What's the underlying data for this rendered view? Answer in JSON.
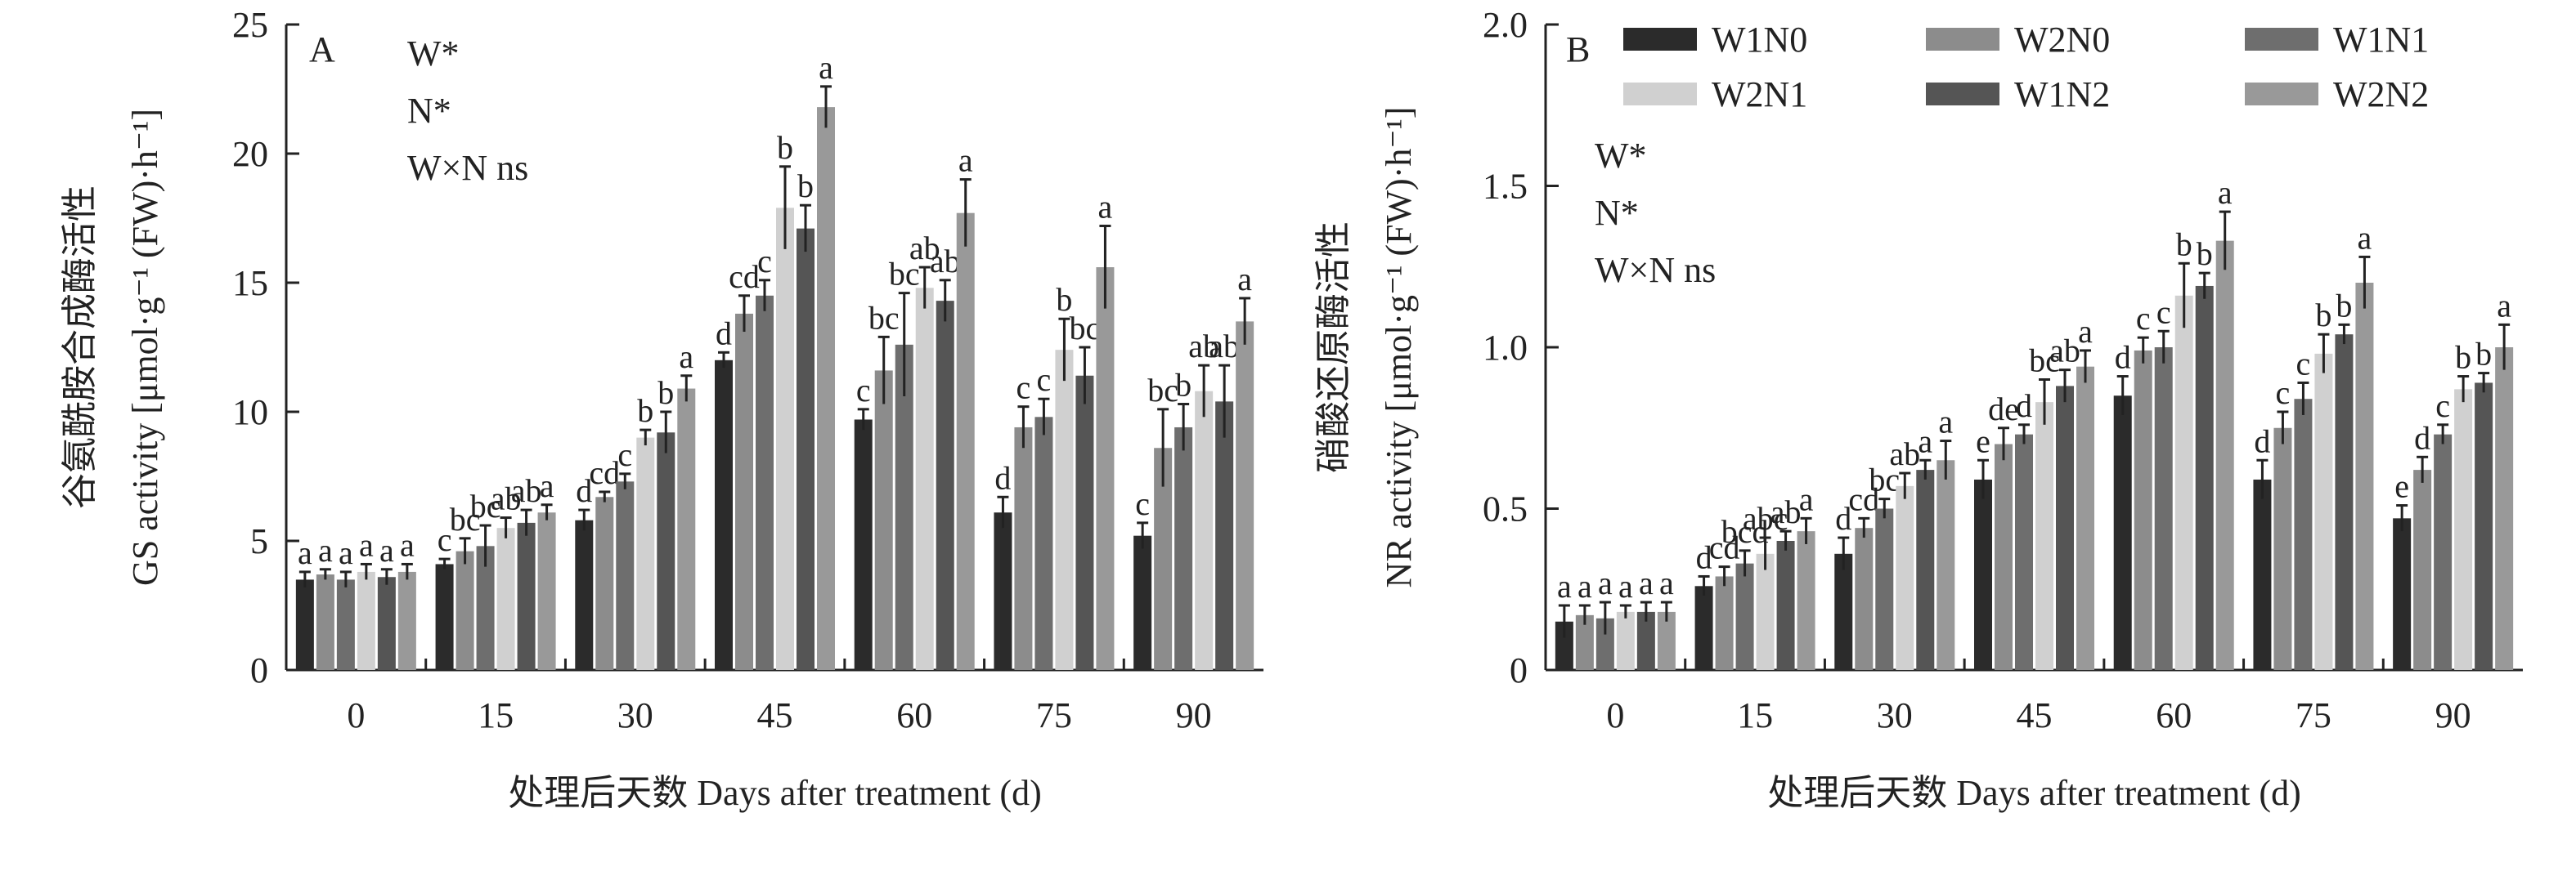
{
  "colors": {
    "axis": "#222222",
    "error_bar": "#222222",
    "series": [
      "#2b2b2b",
      "#8c8c8c",
      "#6e6e6e",
      "#d0d0d0",
      "#555555",
      "#999999"
    ]
  },
  "chart_data": [
    {
      "type": "bar",
      "panel_label": "A",
      "ylabel_cn": "谷氨酰胺合成酶活性",
      "ylabel_en": "GS activity [μmol·g⁻¹ (FW)·h⁻¹]",
      "xlabel": "处理后天数 Days after treatment (d)",
      "ylim": [
        0,
        25
      ],
      "yticks": [
        "0",
        "5",
        "10",
        "15",
        "20",
        "25"
      ],
      "categories": [
        "0",
        "15",
        "30",
        "45",
        "60",
        "75",
        "90"
      ],
      "annotations": [
        "W*",
        "N*",
        "W×N ns"
      ],
      "legend": "none",
      "series": [
        {
          "name": "W1N0",
          "values": [
            3.5,
            4.1,
            5.8,
            12.0,
            9.7,
            6.1,
            5.2
          ],
          "errors": [
            0.3,
            0.2,
            0.4,
            0.3,
            0.4,
            0.6,
            0.5
          ],
          "labels": [
            "a",
            "c",
            "d",
            "d",
            "c",
            "d",
            "c"
          ]
        },
        {
          "name": "W2N0",
          "values": [
            3.7,
            4.6,
            6.7,
            13.8,
            11.6,
            9.4,
            8.6
          ],
          "errors": [
            0.2,
            0.5,
            0.2,
            0.7,
            1.3,
            0.8,
            1.5
          ],
          "labels": [
            "a",
            "bc",
            "cd",
            "cd",
            "bc",
            "c",
            "bc"
          ]
        },
        {
          "name": "W1N1",
          "values": [
            3.5,
            4.8,
            7.3,
            14.5,
            12.6,
            9.8,
            9.4
          ],
          "errors": [
            0.3,
            0.8,
            0.3,
            0.6,
            2.0,
            0.7,
            0.9
          ],
          "labels": [
            "a",
            "bc",
            "c",
            "c",
            "bc",
            "c",
            "b"
          ]
        },
        {
          "name": "W2N1",
          "values": [
            3.8,
            5.5,
            9.0,
            17.9,
            14.8,
            12.4,
            10.8
          ],
          "errors": [
            0.3,
            0.4,
            0.3,
            1.6,
            0.8,
            1.2,
            1.0
          ],
          "labels": [
            "a",
            "ab",
            "b",
            "b",
            "ab",
            "b",
            "ab"
          ]
        },
        {
          "name": "W1N2",
          "values": [
            3.6,
            5.7,
            9.2,
            17.1,
            14.3,
            11.4,
            10.4
          ],
          "errors": [
            0.3,
            0.5,
            0.8,
            0.9,
            0.8,
            1.1,
            1.4
          ],
          "labels": [
            "a",
            "ab",
            "b",
            "b",
            "ab",
            "bc",
            "ab"
          ]
        },
        {
          "name": "W2N2",
          "values": [
            3.8,
            6.1,
            10.9,
            21.8,
            17.7,
            15.6,
            13.5
          ],
          "errors": [
            0.3,
            0.3,
            0.5,
            0.8,
            1.3,
            1.6,
            0.9
          ],
          "labels": [
            "a",
            "a",
            "a",
            "a",
            "a",
            "a",
            "a"
          ]
        }
      ]
    },
    {
      "type": "bar",
      "panel_label": "B",
      "ylabel_cn": "硝酸还原酶活性",
      "ylabel_en": "NR activity [μmol·g⁻¹ (FW)·h⁻¹]",
      "xlabel": "处理后天数 Days after treatment (d)",
      "ylim": [
        0,
        2.0
      ],
      "yticks": [
        "0",
        "0.5",
        "1.0",
        "1.5",
        "2.0"
      ],
      "categories": [
        "0",
        "15",
        "30",
        "45",
        "60",
        "75",
        "90"
      ],
      "annotations": [
        "W*",
        "N*",
        "W×N ns"
      ],
      "legend": "top",
      "series": [
        {
          "name": "W1N0",
          "values": [
            0.15,
            0.26,
            0.36,
            0.59,
            0.85,
            0.59,
            0.47
          ],
          "errors": [
            0.05,
            0.03,
            0.05,
            0.06,
            0.06,
            0.06,
            0.04
          ],
          "labels": [
            "a",
            "d",
            "d",
            "e",
            "d",
            "d",
            "e"
          ]
        },
        {
          "name": "W2N0",
          "values": [
            0.17,
            0.29,
            0.44,
            0.7,
            0.99,
            0.75,
            0.62
          ],
          "errors": [
            0.03,
            0.03,
            0.03,
            0.05,
            0.04,
            0.05,
            0.04
          ],
          "labels": [
            "a",
            "cd",
            "cd",
            "de",
            "c",
            "c",
            "d"
          ]
        },
        {
          "name": "W1N1",
          "values": [
            0.16,
            0.33,
            0.5,
            0.73,
            1.0,
            0.84,
            0.73
          ],
          "errors": [
            0.05,
            0.04,
            0.03,
            0.03,
            0.05,
            0.05,
            0.03
          ],
          "labels": [
            "a",
            "bcd",
            "bc",
            "d",
            "c",
            "c",
            "c"
          ]
        },
        {
          "name": "W2N1",
          "values": [
            0.18,
            0.36,
            0.57,
            0.83,
            1.16,
            0.98,
            0.87
          ],
          "errors": [
            0.02,
            0.05,
            0.04,
            0.07,
            0.1,
            0.06,
            0.04
          ],
          "labels": [
            "a",
            "abc",
            "ab",
            "bc",
            "b",
            "b",
            "b"
          ]
        },
        {
          "name": "W1N2",
          "values": [
            0.18,
            0.4,
            0.62,
            0.88,
            1.19,
            1.04,
            0.89
          ],
          "errors": [
            0.03,
            0.03,
            0.03,
            0.05,
            0.04,
            0.03,
            0.03
          ],
          "labels": [
            "a",
            "ab",
            "a",
            "ab",
            "b",
            "b",
            "b"
          ]
        },
        {
          "name": "W2N2",
          "values": [
            0.18,
            0.43,
            0.65,
            0.94,
            1.33,
            1.2,
            1.0
          ],
          "errors": [
            0.03,
            0.04,
            0.06,
            0.05,
            0.09,
            0.08,
            0.07
          ],
          "labels": [
            "a",
            "a",
            "a",
            "a",
            "a",
            "a",
            "a"
          ]
        }
      ]
    }
  ]
}
